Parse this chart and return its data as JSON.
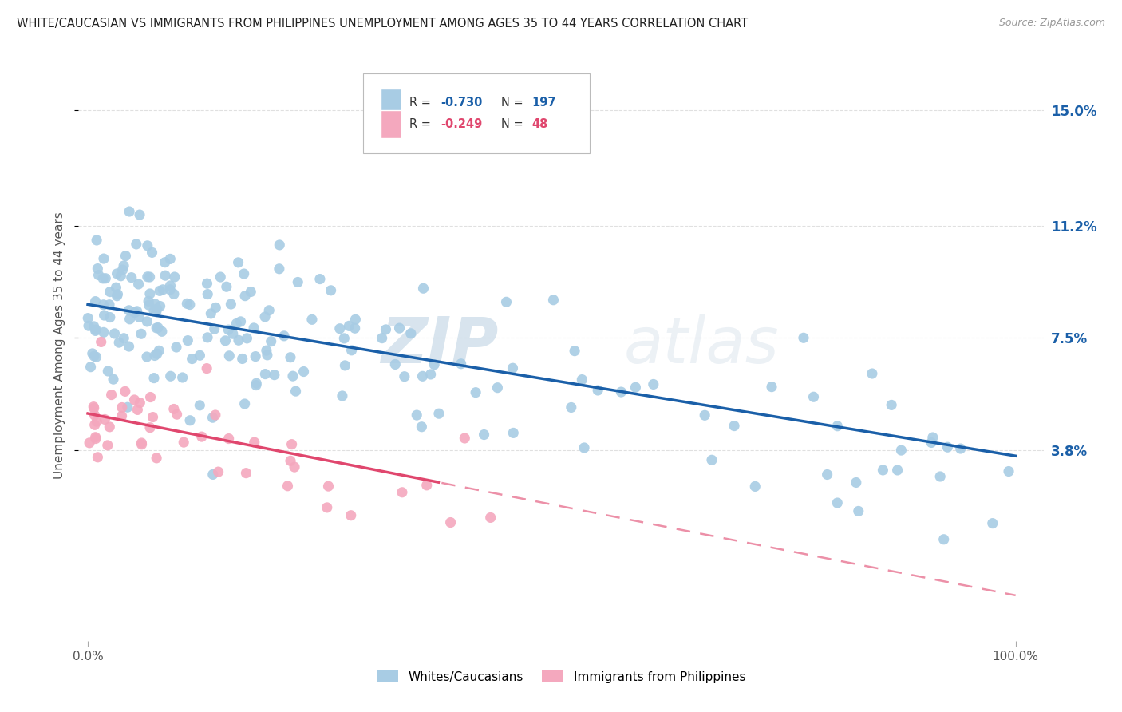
{
  "title": "WHITE/CAUCASIAN VS IMMIGRANTS FROM PHILIPPINES UNEMPLOYMENT AMONG AGES 35 TO 44 YEARS CORRELATION CHART",
  "source": "Source: ZipAtlas.com",
  "ylabel": "Unemployment Among Ages 35 to 44 years",
  "blue_R": "-0.730",
  "blue_N": "197",
  "pink_R": "-0.249",
  "pink_N": "48",
  "blue_color": "#a8cce4",
  "pink_color": "#f4a8be",
  "blue_line_color": "#1a5fa8",
  "pink_line_color": "#e0476e",
  "watermark_zip": "ZIP",
  "watermark_atlas": "atlas",
  "xmin": 0.0,
  "xmax": 100.0,
  "yticks": [
    3.8,
    7.5,
    11.2,
    15.0
  ],
  "ytick_labels": [
    "3.8%",
    "7.5%",
    "11.2%",
    "15.0%"
  ],
  "xtick_labels": [
    "0.0%",
    "100.0%"
  ],
  "blue_intercept": 8.6,
  "blue_slope": -0.05,
  "pink_intercept": 5.0,
  "pink_slope": -0.06,
  "pink_solid_end": 38.0,
  "legend_label_blue": "Whites/Caucasians",
  "legend_label_pink": "Immigrants from Philippines",
  "background_color": "#ffffff",
  "grid_color": "#cccccc"
}
